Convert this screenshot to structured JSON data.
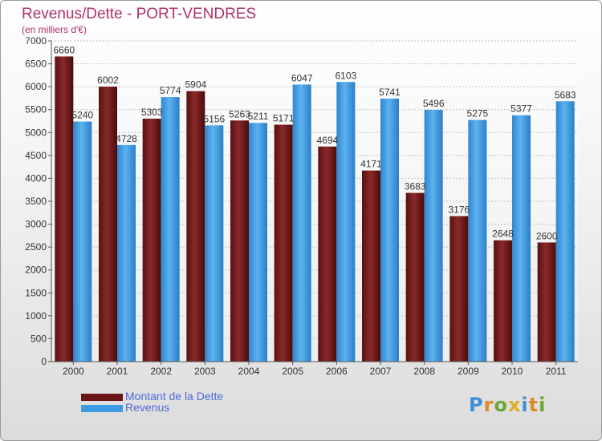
{
  "chart_data": {
    "type": "bar",
    "title": "Revenus/Dette - PORT-VENDRES",
    "subtitle": "(en milliers d'€)",
    "categories": [
      "2000",
      "2001",
      "2002",
      "2003",
      "2004",
      "2005",
      "2006",
      "2007",
      "2008",
      "2009",
      "2010",
      "2011"
    ],
    "series": [
      {
        "name": "Montant de la Dette",
        "color": "#7a1c1c",
        "values": [
          6660,
          6002,
          5303,
          5904,
          5263,
          5171,
          4694,
          4171,
          3683,
          3176,
          2648,
          2600
        ]
      },
      {
        "name": "Revenus",
        "color": "#3d9be3",
        "values": [
          5240,
          4728,
          5774,
          5156,
          5211,
          6047,
          6103,
          5741,
          5496,
          5275,
          5377,
          5683
        ]
      }
    ],
    "ylim": [
      0,
      7000
    ],
    "yticks": [
      0,
      500,
      1000,
      1500,
      2000,
      2500,
      3000,
      3500,
      4000,
      4500,
      5000,
      5500,
      6000,
      6500,
      7000
    ],
    "grid": true,
    "legend_position": "bottom-left"
  },
  "logo": {
    "text": "Proxiti"
  }
}
